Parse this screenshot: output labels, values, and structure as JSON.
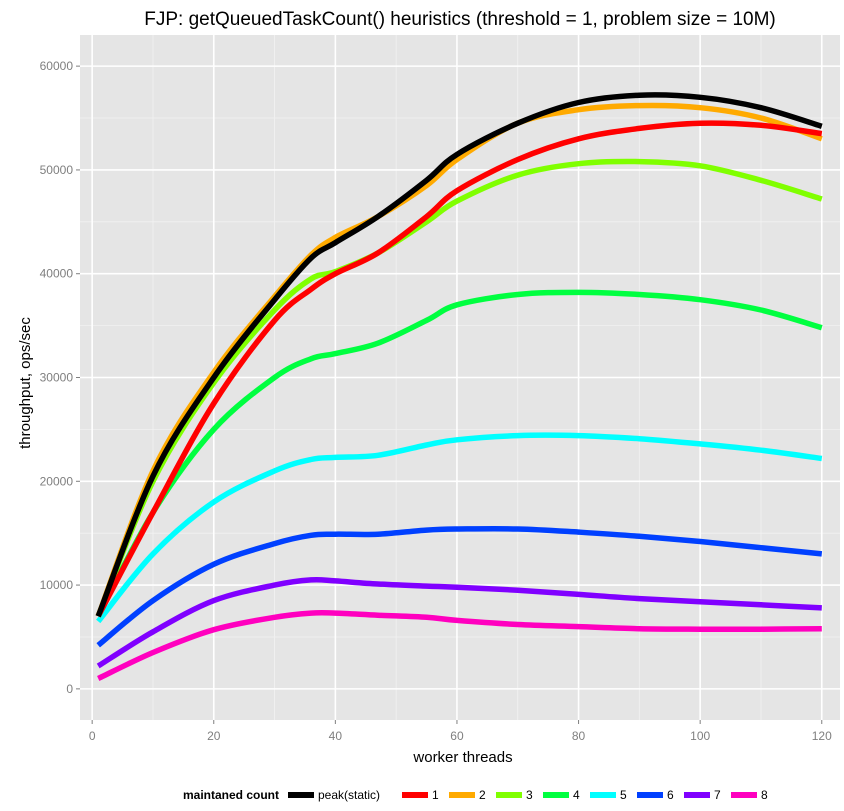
{
  "chart_data": {
    "type": "line",
    "title": "FJP: getQueuedTaskCount() heuristics (threshold = 1, problem size = 10M)",
    "xlabel": "worker threads",
    "ylabel": "throughput, ops/sec",
    "xlim": [
      -2,
      123
    ],
    "ylim": [
      -3000,
      63000
    ],
    "xticks": [
      0,
      20,
      40,
      60,
      80,
      100,
      120
    ],
    "yticks": [
      0,
      10000,
      20000,
      30000,
      40000,
      50000,
      60000
    ],
    "grid": true,
    "background": "#e5e5e5",
    "legend": {
      "title": "maintaned count",
      "position": "bottom"
    },
    "x": [
      1,
      10,
      20,
      30,
      36,
      40,
      47,
      55,
      60,
      70,
      80,
      90,
      100,
      110,
      120
    ],
    "series": [
      {
        "name": "peak(static)",
        "color": "#000000",
        "values": [
          7000,
          20500,
          30000,
          37500,
          41500,
          43000,
          45500,
          49000,
          51500,
          54500,
          56500,
          57200,
          57000,
          56000,
          54200
        ]
      },
      {
        "name": "1",
        "color": "#ff0000",
        "values": [
          7000,
          17000,
          27500,
          35500,
          38500,
          40000,
          42000,
          45500,
          48000,
          51000,
          53000,
          54000,
          54500,
          54300,
          53500
        ]
      },
      {
        "name": "2",
        "color": "#ffaa00",
        "values": [
          7000,
          21000,
          30500,
          37800,
          41800,
          43500,
          45500,
          48500,
          51000,
          54500,
          55800,
          56200,
          56000,
          55000,
          53000
        ]
      },
      {
        "name": "3",
        "color": "#80ff00",
        "values": [
          7000,
          20000,
          29500,
          36500,
          39500,
          40200,
          42000,
          45000,
          47000,
          49500,
          50600,
          50800,
          50400,
          49000,
          47200
        ]
      },
      {
        "name": "4",
        "color": "#00ff40",
        "values": [
          7000,
          17000,
          25000,
          30000,
          31800,
          32300,
          33300,
          35500,
          37000,
          38000,
          38200,
          38000,
          37500,
          36500,
          34800
        ]
      },
      {
        "name": "5",
        "color": "#00ffff",
        "values": [
          6500,
          13000,
          18000,
          21000,
          22100,
          22300,
          22500,
          23500,
          24000,
          24400,
          24400,
          24100,
          23600,
          23000,
          22200
        ]
      },
      {
        "name": "6",
        "color": "#0040ff",
        "values": [
          4200,
          8500,
          12000,
          14000,
          14800,
          14900,
          14900,
          15300,
          15400,
          15400,
          15100,
          14700,
          14200,
          13600,
          13000
        ]
      },
      {
        "name": "7",
        "color": "#8000ff",
        "values": [
          2200,
          5500,
          8500,
          10000,
          10500,
          10400,
          10100,
          9900,
          9800,
          9500,
          9100,
          8700,
          8400,
          8100,
          7800
        ]
      },
      {
        "name": "8",
        "color": "#ff00bf",
        "values": [
          1000,
          3500,
          5700,
          6900,
          7300,
          7300,
          7100,
          6900,
          6600,
          6200,
          6000,
          5800,
          5750,
          5750,
          5800
        ]
      }
    ]
  }
}
